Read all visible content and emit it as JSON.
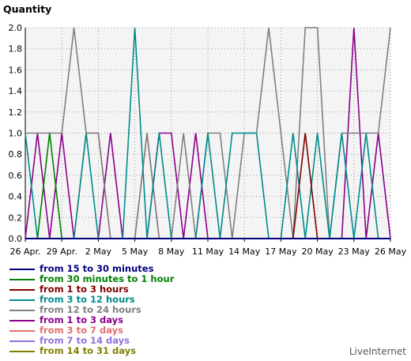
{
  "chart_data": {
    "type": "line",
    "ylabel": "Quantity",
    "ylim": [
      0,
      2
    ],
    "yticks": [
      "0.0",
      "0.2",
      "0.4",
      "0.6",
      "0.8",
      "1.0",
      "1.2",
      "1.4",
      "1.6",
      "1.8",
      "2.0"
    ],
    "xticks": [
      "26 Apr.",
      "29 Apr.",
      "2 May",
      "5 May",
      "8 May",
      "11 May",
      "14 May",
      "17 May",
      "20 May",
      "23 May",
      "26 May"
    ],
    "x": [
      "26 Apr.",
      "27 Apr.",
      "28 Apr.",
      "29 Apr.",
      "30 Apr.",
      "1 May",
      "2 May",
      "3 May",
      "4 May",
      "5 May",
      "6 May",
      "7 May",
      "8 May",
      "9 May",
      "10 May",
      "11 May",
      "12 May",
      "13 May",
      "14 May",
      "15 May",
      "16 May",
      "17 May",
      "18 May",
      "19 May",
      "20 May",
      "21 May",
      "22 May",
      "23 May",
      "24 May",
      "25 May",
      "26 May"
    ],
    "grid": true,
    "legend_position": "bottom",
    "series": [
      {
        "name": "from 15 to 30 minutes",
        "color": "#00007f",
        "values": [
          0,
          0,
          0,
          0,
          0,
          0,
          0,
          0,
          0,
          0,
          0,
          0,
          0,
          0,
          0,
          0,
          0,
          0,
          0,
          0,
          0,
          0,
          0,
          0,
          0,
          0,
          0,
          0,
          0,
          0,
          0
        ]
      },
      {
        "name": "from 30 minutes to 1 hour",
        "color": "#008000",
        "values": [
          0,
          0,
          1,
          0,
          0,
          0,
          0,
          0,
          0,
          0,
          0,
          0,
          0,
          0,
          0,
          0,
          0,
          0,
          0,
          0,
          0,
          0,
          0,
          0,
          0,
          0,
          0,
          0,
          0,
          0,
          0
        ]
      },
      {
        "name": "from 1 to 3 hours",
        "color": "#800000",
        "values": [
          0,
          0,
          0,
          0,
          0,
          0,
          0,
          0,
          0,
          0,
          0,
          0,
          0,
          0,
          0,
          0,
          0,
          0,
          0,
          0,
          0,
          0,
          0,
          1,
          0,
          0,
          0,
          0,
          0,
          0,
          0
        ]
      },
      {
        "name": "from 3 to 12 hours",
        "color": "#008b8b",
        "values": [
          1,
          0,
          0,
          0,
          0,
          1,
          0,
          0,
          0,
          2,
          0,
          1,
          0,
          0,
          0,
          1,
          0,
          1,
          1,
          1,
          0,
          0,
          1,
          0,
          1,
          0,
          1,
          0,
          1,
          0,
          0
        ]
      },
      {
        "name": "from 12 to 24 hours",
        "color": "#808080",
        "values": [
          1,
          1,
          1,
          1,
          2,
          1,
          1,
          0,
          0,
          0,
          1,
          0,
          0,
          1,
          0,
          1,
          1,
          0,
          1,
          1,
          2,
          1,
          0,
          2,
          2,
          0,
          1,
          1,
          1,
          1,
          2
        ]
      },
      {
        "name": "from 1 to 3 days",
        "color": "#8b008b",
        "values": [
          0,
          1,
          0,
          1,
          0,
          0,
          0,
          1,
          0,
          0,
          0,
          1,
          1,
          0,
          1,
          0,
          0,
          0,
          0,
          0,
          0,
          0,
          0,
          0,
          0,
          0,
          0,
          2,
          0,
          1,
          0
        ]
      },
      {
        "name": "from 3 to 7 days",
        "color": "#e07070",
        "values": [
          0,
          0,
          0,
          0,
          0,
          1,
          1,
          0,
          0,
          0,
          1,
          0,
          0,
          0,
          0,
          0,
          0,
          0,
          0,
          0,
          0,
          0,
          0,
          0,
          0,
          0,
          0,
          0,
          0,
          0,
          0
        ]
      },
      {
        "name": "from 7 to 14 days",
        "color": "#9370db",
        "values": [
          0,
          0,
          0,
          0,
          0,
          0,
          0,
          0,
          0,
          0,
          0,
          0,
          0,
          0,
          0,
          0,
          0,
          0,
          0,
          0,
          0,
          0,
          0,
          0,
          0,
          0,
          0,
          0,
          0,
          0,
          0
        ]
      },
      {
        "name": "from 14 to 31 days",
        "color": "#808000",
        "values": [
          0,
          0,
          0,
          0,
          0,
          0,
          0,
          0,
          0,
          0,
          0,
          0,
          0,
          0,
          0,
          0,
          0,
          0,
          0,
          0,
          0,
          0,
          0,
          0,
          0,
          0,
          0,
          0,
          0,
          0,
          0
        ]
      }
    ]
  },
  "watermark": "LiveInternet"
}
